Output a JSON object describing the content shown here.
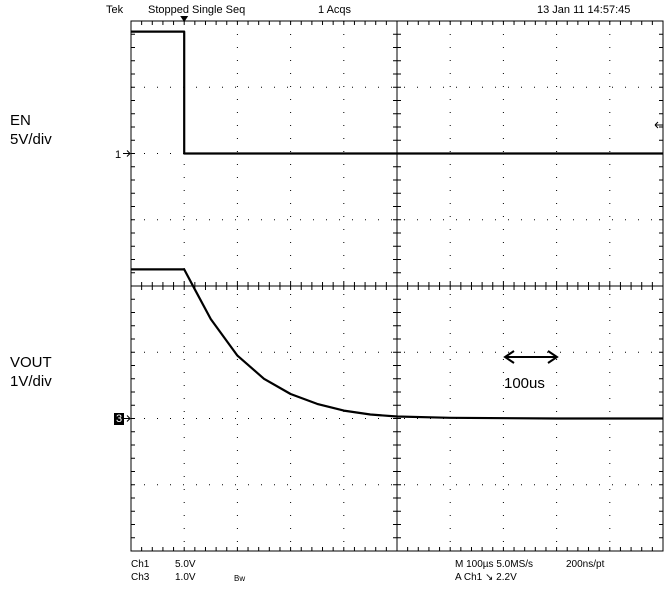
{
  "header": {
    "brand": "Tek",
    "status": "Stopped Single Seq",
    "acqs": "1 Acqs",
    "datetime": "13 Jan 11 14:57:45"
  },
  "labels": {
    "ch1_name": "EN",
    "ch1_scale": "5V/div",
    "ch3_name": "VOUT",
    "ch3_scale": "1V/div",
    "ch1_marker": "1",
    "ch3_marker": "3",
    "time_annotation": "100us"
  },
  "footer": {
    "ch1": "Ch1",
    "ch1_v": "5.0V",
    "ch3": "Ch3",
    "ch3_v": "1.0V",
    "bw": "Bw",
    "timebase": "M 100µs 5.0MS/s",
    "resolution": "200ns/pt",
    "trigger": "A  Ch1  ↘  2.2V"
  },
  "colors": {
    "trace": "#000000",
    "grid": "#000000",
    "background": "#ffffff"
  },
  "chart_data": {
    "type": "line",
    "title": "",
    "xlabel": "",
    "ylabel": "",
    "x_unit": "us",
    "xlim": [
      0,
      1000
    ],
    "x_divisions": 10,
    "y_divisions": 8,
    "grid": true,
    "series": [
      {
        "name": "EN",
        "x": [
          0,
          100,
          100,
          1000
        ],
        "y": [
          9.2,
          9.2,
          0,
          0
        ]
      },
      {
        "name": "VOUT",
        "x": [
          0,
          100,
          120,
          150,
          200,
          250,
          300,
          350,
          400,
          450,
          500,
          600,
          800,
          1000
        ],
        "y": [
          2.25,
          2.25,
          1.95,
          1.5,
          0.95,
          0.6,
          0.37,
          0.22,
          0.12,
          0.06,
          0.03,
          0.01,
          0,
          0
        ]
      }
    ]
  }
}
